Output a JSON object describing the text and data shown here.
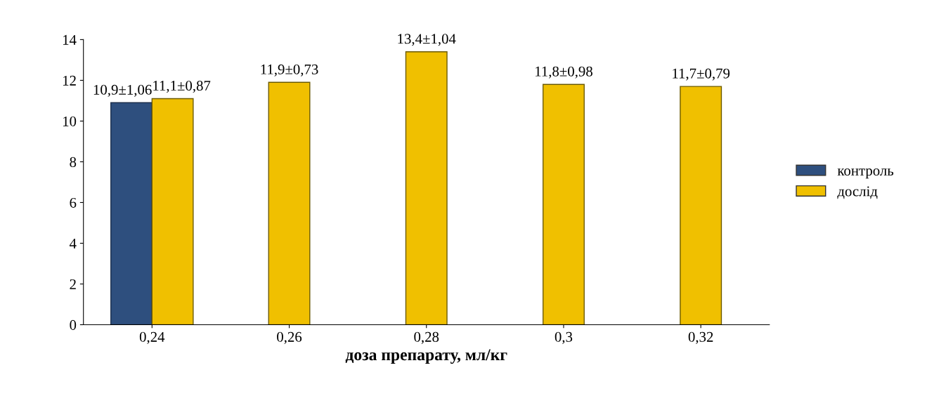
{
  "chart_data": {
    "type": "bar",
    "xlabel": "доза препарату, мл/кг",
    "categories": [
      "0,24",
      "0,26",
      "0,28",
      "0,3",
      "0,32"
    ],
    "series": [
      {
        "name": "контроль",
        "color": "#2e4f7e",
        "values": [
          10.9,
          null,
          null,
          null,
          null
        ],
        "value_labels": [
          "10,9±1,06",
          null,
          null,
          null,
          null
        ]
      },
      {
        "name": "дослід",
        "color": "#f0c000",
        "values": [
          11.1,
          11.9,
          13.4,
          11.8,
          11.7
        ],
        "value_labels": [
          "11,1±0,87",
          "11,9±0,73",
          "13,4±1,04",
          "11,8±0,98",
          "11,7±0,79"
        ]
      }
    ],
    "ylim": [
      0,
      14
    ],
    "yticks": [
      0,
      2,
      4,
      6,
      8,
      10,
      12,
      14
    ],
    "grid": false,
    "legend": "right"
  }
}
